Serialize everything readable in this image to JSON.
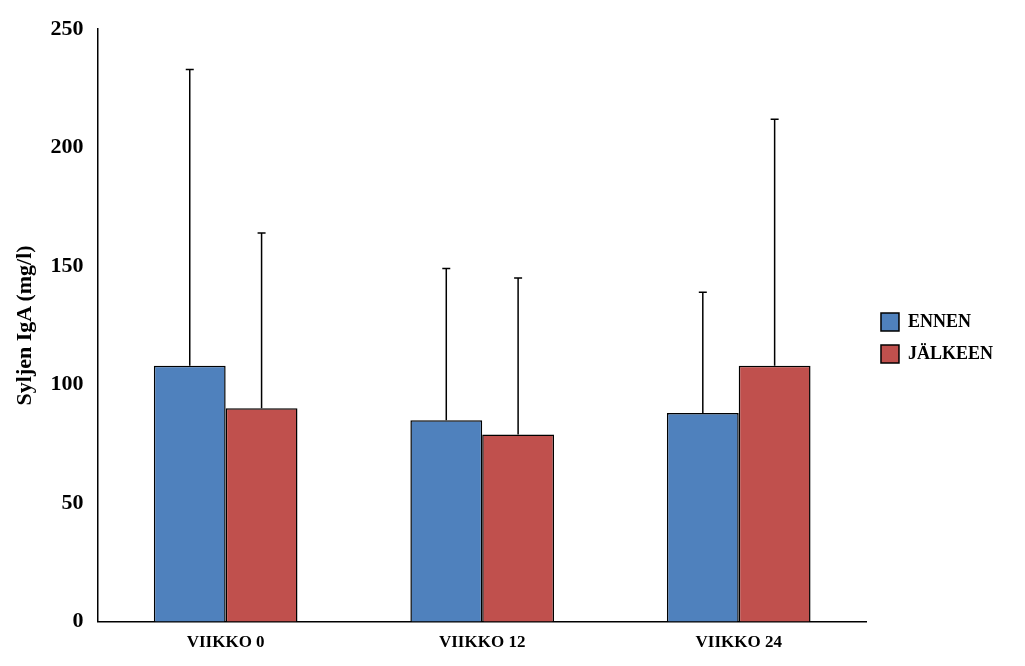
{
  "chart_data": {
    "type": "bar",
    "ylabel": "Syljen IgA (mg/l)",
    "categories": [
      "VIIKKO 0",
      "VIIKKO 12",
      "VIIKKO 24"
    ],
    "series": [
      {
        "name": "ENNEN",
        "color": "#4f81bd",
        "values": [
          108,
          85,
          88
        ],
        "errors": [
          [
            108,
            233
          ],
          [
            85,
            149
          ],
          [
            88,
            139
          ]
        ]
      },
      {
        "name": "JÄLKEEN",
        "color": "#c0504d",
        "values": [
          90,
          79,
          108
        ],
        "errors": [
          [
            90,
            164
          ],
          [
            79,
            145
          ],
          [
            108,
            212
          ]
        ]
      }
    ],
    "ylim": [
      0,
      250
    ],
    "yticks": [
      0,
      50,
      100,
      150,
      200,
      250
    ],
    "grid": false,
    "legend": "right"
  }
}
